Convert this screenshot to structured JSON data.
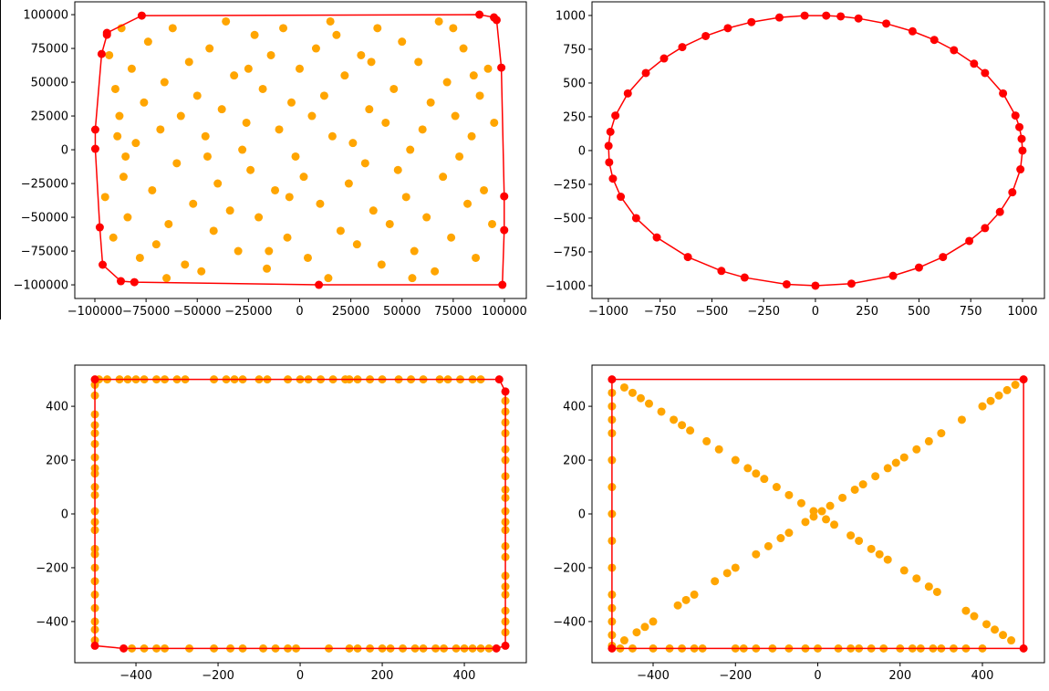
{
  "chart_data": [
    {
      "type": "scatter",
      "xlim": [
        -109800,
        110700
      ],
      "ylim": [
        -110100,
        109500
      ],
      "xticks": [
        {
          "value": -100000,
          "label": "−100000"
        },
        {
          "value": -75000,
          "label": "−75000"
        },
        {
          "value": -50000,
          "label": "−50000"
        },
        {
          "value": -25000,
          "label": "−25000"
        },
        0,
        25000,
        50000,
        75000,
        100000
      ],
      "yticks": [
        {
          "value": -100000,
          "label": "−100000"
        },
        {
          "value": -75000,
          "label": "−75000"
        },
        {
          "value": -50000,
          "label": "−50000"
        },
        {
          "value": -25000,
          "label": "−25000"
        },
        0,
        25000,
        50000,
        75000,
        100000
      ],
      "series": [
        {
          "color": "#ffa500",
          "x": [
            -90000,
            -88000,
            -86000,
            -84000,
            -82000,
            -80000,
            -78000,
            -76000,
            -74000,
            -72000,
            -70000,
            -68000,
            -66000,
            -64000,
            -62000,
            -60000,
            -58000,
            -56000,
            -54000,
            -52000,
            -50000,
            -48000,
            -46000,
            -44000,
            -42000,
            -40000,
            -38000,
            -36000,
            -34000,
            -32000,
            -30000,
            -28000,
            -26000,
            -24000,
            -22000,
            -20000,
            -18000,
            -16000,
            -14000,
            -12000,
            -10000,
            -8000,
            -6000,
            -4000,
            -2000,
            0,
            2000,
            4000,
            6000,
            8000,
            10000,
            12000,
            14000,
            16000,
            18000,
            20000,
            22000,
            24000,
            26000,
            28000,
            30000,
            32000,
            34000,
            36000,
            38000,
            40000,
            42000,
            44000,
            46000,
            48000,
            50000,
            52000,
            54000,
            56000,
            58000,
            60000,
            62000,
            64000,
            66000,
            68000,
            70000,
            72000,
            74000,
            76000,
            78000,
            80000,
            82000,
            84000,
            86000,
            88000,
            90000,
            92000,
            94000,
            95000,
            -95000,
            -93000,
            -91000,
            -89000,
            -87000,
            -85000,
            -65000,
            -45000,
            -25000,
            -5000,
            15000,
            35000,
            55000,
            75000,
            85000,
            -15000
          ],
          "values": [
            45000,
            25000,
            -20000,
            -50000,
            60000,
            5000,
            -80000,
            35000,
            80000,
            -30000,
            -70000,
            15000,
            50000,
            -55000,
            90000,
            -10000,
            25000,
            -85000,
            65000,
            -40000,
            40000,
            -90000,
            10000,
            75000,
            -60000,
            -25000,
            30000,
            95000,
            -45000,
            55000,
            -75000,
            0,
            20000,
            -15000,
            85000,
            -50000,
            45000,
            -88000,
            70000,
            -30000,
            15000,
            90000,
            -65000,
            35000,
            -5000,
            60000,
            -20000,
            -80000,
            25000,
            75000,
            -40000,
            40000,
            -95000,
            10000,
            85000,
            -60000,
            55000,
            -25000,
            5000,
            -70000,
            70000,
            -10000,
            30000,
            -45000,
            90000,
            -85000,
            20000,
            -55000,
            45000,
            -15000,
            80000,
            -35000,
            0,
            -75000,
            65000,
            15000,
            -50000,
            35000,
            -90000,
            95000,
            -20000,
            50000,
            -65000,
            25000,
            -5000,
            75000,
            -40000,
            10000,
            -80000,
            40000,
            -30000,
            60000,
            -55000,
            20000,
            -35000,
            70000,
            -65000,
            10000,
            90000,
            -5000,
            -95000,
            -5000,
            60000,
            -35000,
            95000,
            65000,
            -95000,
            90000,
            55000,
            -75000
          ]
        },
        {
          "color": "#ff0000",
          "connected": true,
          "closed": true,
          "x": [
            -77100,
            87800,
            94900,
            96200,
            98500,
            99900,
            99900,
            99000,
            9400,
            -80700,
            -87300,
            -96200,
            -97600,
            -99800,
            -99800,
            -96700,
            -94100,
            -94100
          ],
          "values": [
            99300,
            100000,
            98000,
            96000,
            60800,
            -34500,
            -59500,
            -100000,
            -100000,
            -98000,
            -97300,
            -85100,
            -57400,
            700,
            14900,
            70900,
            85100,
            86500
          ]
        }
      ]
    },
    {
      "type": "scatter",
      "xlim": [
        -1079,
        1106
      ],
      "ylim": [
        -1095,
        1101
      ],
      "xticks": [
        {
          "value": -1000,
          "label": "−1000"
        },
        {
          "value": -750,
          "label": "−750"
        },
        {
          "value": -500,
          "label": "−500"
        },
        {
          "value": -250,
          "label": "−250"
        },
        0,
        250,
        500,
        750,
        1000
      ],
      "yticks": [
        {
          "value": -1000,
          "label": "−1000"
        },
        {
          "value": -750,
          "label": "−750"
        },
        {
          "value": -500,
          "label": "−500"
        },
        {
          "value": -250,
          "label": "−250"
        },
        0,
        250,
        500,
        750,
        1000
      ],
      "series": [
        {
          "color": "#ff0000",
          "connected": true,
          "closed": true,
          "x": [
            1000,
            996,
            985,
            966,
            906,
            819,
            766,
            669,
            574,
            469,
            342,
            208,
            122,
            52,
            -52,
            -174,
            -309,
            -423,
            -530,
            -643,
            -731,
            -819,
            -906,
            -966,
            -990,
            -999,
            -996,
            -978,
            -940,
            -866,
            -766,
            -616,
            -454,
            -342,
            -139,
            0,
            174,
            375,
            500,
            616,
            743,
            819,
            891,
            951,
            990
          ],
          "values": [
            0,
            87,
            174,
            259,
            423,
            574,
            643,
            743,
            819,
            883,
            940,
            978,
            993,
            999,
            999,
            985,
            951,
            906,
            848,
            766,
            682,
            574,
            423,
            259,
            139,
            35,
            -87,
            -208,
            -342,
            -500,
            -643,
            -788,
            -891,
            -940,
            -990,
            -1000,
            -985,
            -927,
            -866,
            -788,
            -669,
            -574,
            -454,
            -309,
            -139
          ]
        }
      ]
    },
    {
      "type": "scatter",
      "xlim": [
        -549,
        551
      ],
      "ylim": [
        -553,
        553
      ],
      "xticks": [
        {
          "value": -400,
          "label": "−400"
        },
        {
          "value": -200,
          "label": "−200"
        },
        0,
        200,
        400
      ],
      "yticks": [
        {
          "value": -400,
          "label": "−400"
        },
        {
          "value": -200,
          "label": "−200"
        },
        0,
        200,
        400
      ],
      "series": [
        {
          "color": "#ffa500",
          "x": [
            -490,
            -470,
            -440,
            -420,
            -400,
            -380,
            -350,
            -330,
            -300,
            -280,
            -210,
            -180,
            -160,
            -140,
            -100,
            -80,
            -30,
            0,
            20,
            50,
            80,
            110,
            120,
            140,
            170,
            200,
            240,
            270,
            300,
            340,
            360,
            390,
            420,
            440
          ],
          "values": [
            500,
            500,
            500,
            500,
            500,
            500,
            500,
            500,
            500,
            500,
            500,
            500,
            500,
            500,
            500,
            500,
            500,
            500,
            500,
            500,
            500,
            500,
            500,
            500,
            500,
            500,
            500,
            500,
            500,
            500,
            500,
            500,
            500,
            500
          ]
        },
        {
          "color": "#ffa500",
          "x": [
            -410,
            -380,
            -350,
            -330,
            -270,
            -210,
            -170,
            -140,
            -90,
            -60,
            -30,
            -10,
            70,
            120,
            140,
            170,
            200,
            220,
            250,
            280,
            300,
            330,
            350,
            380,
            400,
            420,
            440,
            460
          ],
          "values": [
            -500,
            -500,
            -500,
            -500,
            -500,
            -500,
            -500,
            -500,
            -500,
            -500,
            -500,
            -500,
            -500,
            -500,
            -500,
            -500,
            -500,
            -500,
            -500,
            -500,
            -500,
            -500,
            -500,
            -500,
            -500,
            -500,
            -500,
            -500
          ]
        },
        {
          "color": "#ffa500",
          "x": [
            -500,
            -500,
            -500,
            -500,
            -500,
            -500,
            -500,
            -500,
            -500,
            -500,
            -500,
            -500,
            -500,
            -500,
            -500,
            -500,
            -500,
            -500,
            -500,
            -500,
            -500,
            -500,
            -500
          ],
          "values": [
            -470,
            -430,
            -400,
            -350,
            -300,
            -250,
            -200,
            -150,
            -130,
            -60,
            -30,
            10,
            70,
            100,
            150,
            170,
            210,
            260,
            300,
            330,
            370,
            440,
            480
          ]
        },
        {
          "color": "#ffa500",
          "x": [
            500,
            500,
            500,
            500,
            500,
            500,
            500,
            500,
            500,
            500,
            500,
            500,
            500,
            500,
            500,
            500,
            500,
            500,
            500,
            500
          ],
          "values": [
            -440,
            -400,
            -360,
            -300,
            -270,
            -230,
            -160,
            -120,
            -60,
            -30,
            10,
            60,
            90,
            140,
            200,
            240,
            300,
            340,
            380,
            420
          ]
        },
        {
          "color": "#ff0000",
          "connected": true,
          "closed": true,
          "x": [
            -500,
            485,
            500,
            500,
            478,
            -430,
            -500
          ],
          "values": [
            500,
            500,
            455,
            -490,
            -500,
            -500,
            -490
          ]
        }
      ]
    },
    {
      "type": "scatter",
      "xlim": [
        -548.5,
        550.7
      ],
      "ylim": [
        -553,
        553
      ],
      "xticks": [
        {
          "value": -400,
          "label": "−400"
        },
        {
          "value": -200,
          "label": "−200"
        },
        0,
        200,
        400
      ],
      "yticks": [
        {
          "value": -400,
          "label": "−400"
        },
        {
          "value": -200,
          "label": "−200"
        },
        0,
        200,
        400
      ],
      "series": [
        {
          "color": "#ffa500",
          "x": [
            -470,
            -440,
            -420,
            -400,
            -340,
            -320,
            -300,
            -250,
            -220,
            -200,
            -150,
            -120,
            -90,
            -70,
            -30,
            -10,
            10,
            30,
            60,
            90,
            110,
            140,
            170,
            190,
            210,
            240,
            270,
            300,
            350,
            400,
            420,
            440,
            460,
            480
          ],
          "values": [
            -470,
            -440,
            -420,
            -400,
            -340,
            -320,
            -300,
            -250,
            -220,
            -200,
            -150,
            -120,
            -90,
            -70,
            -30,
            -10,
            10,
            30,
            60,
            90,
            110,
            140,
            170,
            190,
            210,
            240,
            270,
            300,
            350,
            400,
            420,
            440,
            460,
            480
          ]
        },
        {
          "color": "#ffa500",
          "x": [
            -470,
            -450,
            -430,
            -410,
            -380,
            -350,
            -330,
            -310,
            -270,
            -240,
            -200,
            -170,
            -150,
            -130,
            -100,
            -70,
            -40,
            -10,
            20,
            40,
            80,
            100,
            130,
            150,
            170,
            210,
            240,
            270,
            290,
            360,
            380,
            410,
            430,
            450,
            470
          ],
          "values": [
            470,
            450,
            430,
            410,
            380,
            350,
            330,
            310,
            270,
            240,
            200,
            170,
            150,
            130,
            100,
            70,
            40,
            10,
            -20,
            -40,
            -80,
            -100,
            -130,
            -150,
            -170,
            -210,
            -240,
            -270,
            -290,
            -360,
            -380,
            -410,
            -430,
            -450,
            -470
          ]
        },
        {
          "color": "#ffa500",
          "x": [
            -500,
            -500,
            -500,
            -500,
            -500,
            -500,
            -500,
            -500,
            -500,
            -500,
            -500,
            -500,
            -500,
            -500
          ],
          "values": [
            -490,
            -450,
            -400,
            -350,
            -300,
            -200,
            -100,
            0,
            100,
            200,
            300,
            350,
            400,
            450
          ]
        },
        {
          "color": "#ffa500",
          "x": [
            -480,
            -450,
            -400,
            -360,
            -330,
            -300,
            -280,
            -200,
            -180,
            -150,
            -110,
            -70,
            -30,
            0,
            50,
            80,
            100,
            130,
            160,
            200,
            230,
            250,
            280,
            300,
            330,
            360,
            400
          ],
          "values": [
            -500,
            -500,
            -500,
            -500,
            -500,
            -500,
            -500,
            -500,
            -500,
            -500,
            -500,
            -500,
            -500,
            -500,
            -500,
            -500,
            -500,
            -500,
            -500,
            -500,
            -500,
            -500,
            -500,
            -500,
            -500,
            -500,
            -500
          ]
        },
        {
          "color": "#ff0000",
          "connected": true,
          "closed": true,
          "x": [
            -500,
            500,
            500,
            -500
          ],
          "values": [
            500,
            500,
            -500,
            -500
          ]
        }
      ]
    }
  ]
}
